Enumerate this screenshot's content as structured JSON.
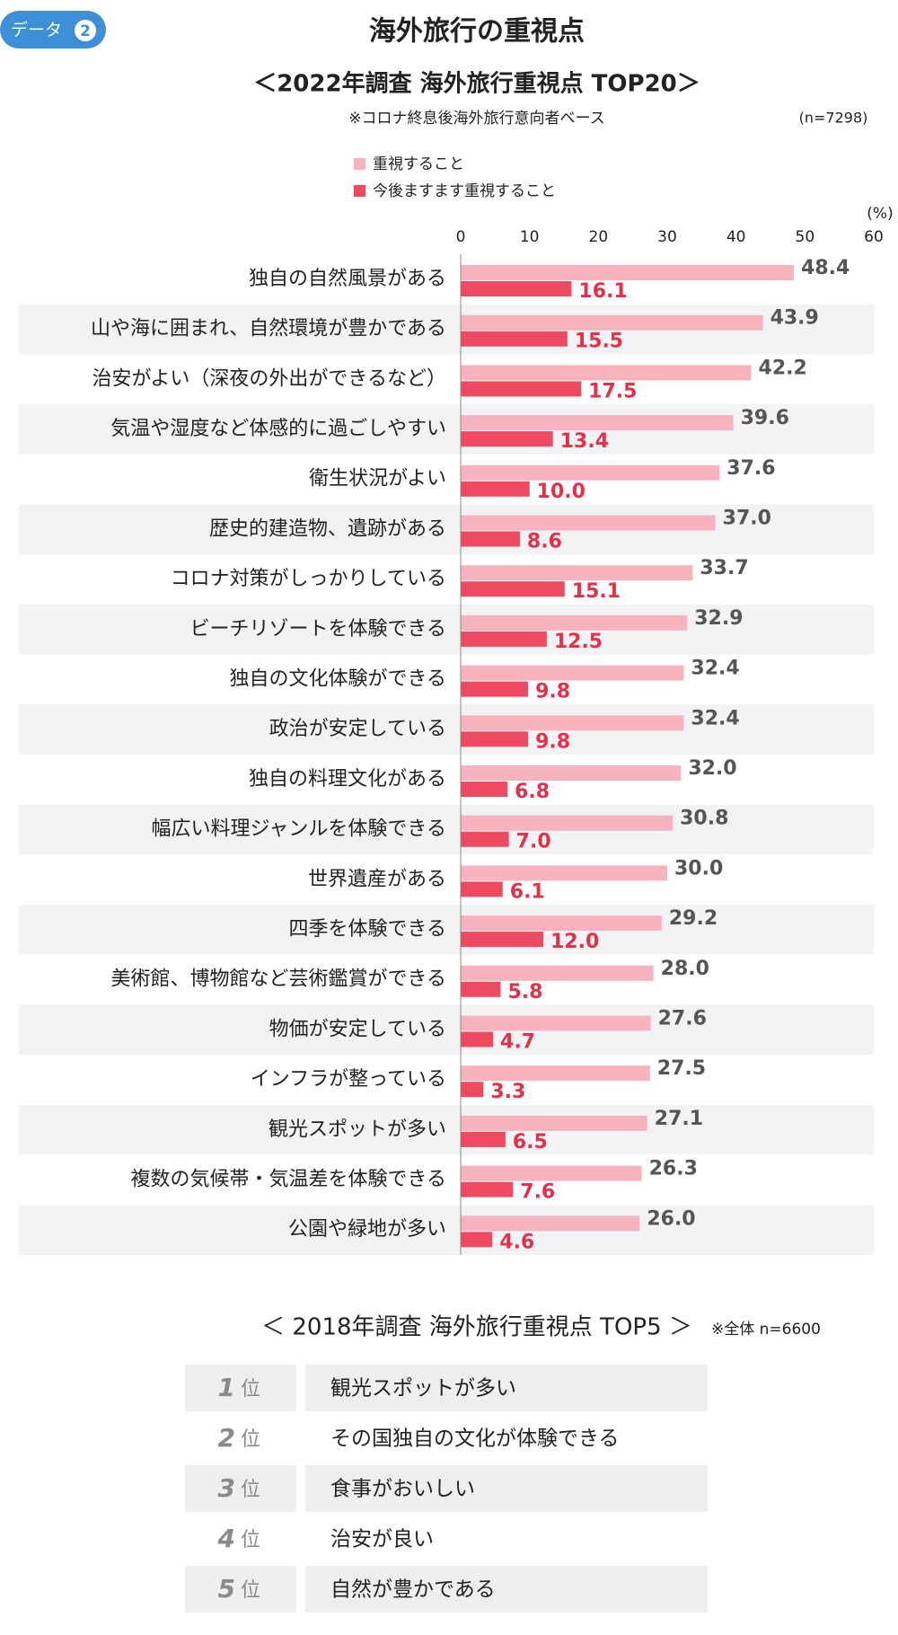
{
  "badge": {
    "label": "データ",
    "number": "2"
  },
  "title": "海外旅行の重視点",
  "chart_data": {
    "type": "bar",
    "orientation": "horizontal",
    "title": "＜2022年調査 海外旅行重視点 TOP20＞",
    "subtitle": "※コロナ終息後海外旅行意向者ベース",
    "sample_note": "(n=7298)",
    "unit_label": "(%)",
    "categories": [
      "独自の自然風景がある",
      "山や海に囲まれ、自然環境が豊かである",
      "治安がよい（深夜の外出ができるなど）",
      "気温や湿度など体感的に過ごしやすい",
      "衛生状況がよい",
      "歴史的建造物、遺跡がある",
      "コロナ対策がしっかりしている",
      "ビーチリゾートを体験できる",
      "独自の文化体験ができる",
      "政治が安定している",
      "独自の料理文化がある",
      "幅広い料理ジャンルを体験できる",
      "世界遺産がある",
      "四季を体験できる",
      "美術館、博物館など芸術鑑賞ができる",
      "物価が安定している",
      "インフラが整っている",
      "観光スポットが多い",
      "複数の気候帯・気温差を体験できる",
      "公園や緑地が多い"
    ],
    "series": [
      {
        "name": "重視すること",
        "color": "#f8b4be",
        "label_color": "#555555",
        "values": [
          48.4,
          43.9,
          42.2,
          39.6,
          37.6,
          37.0,
          33.7,
          32.9,
          32.4,
          32.4,
          32.0,
          30.8,
          30.0,
          29.2,
          28.0,
          27.6,
          27.5,
          27.1,
          26.3,
          26.0
        ],
        "value_labels": [
          "48.4",
          "43.9",
          "42.2",
          "39.6",
          "37.6",
          "37.0",
          "33.7",
          "32.9",
          "32.4",
          "32.4",
          "32.0",
          "30.8",
          "30.0",
          "29.2",
          "28.0",
          "27.6",
          "27.5",
          "27.1",
          "26.3",
          "26.0"
        ]
      },
      {
        "name": "今後ますます重視すること",
        "color": "#ee4a61",
        "label_color": "#e5304a",
        "values": [
          16.1,
          15.5,
          17.5,
          13.4,
          10.0,
          8.6,
          15.1,
          12.5,
          9.8,
          9.8,
          6.8,
          7.0,
          6.1,
          12.0,
          5.8,
          4.7,
          3.3,
          6.5,
          7.6,
          4.6
        ],
        "value_labels": [
          "16.1",
          "15.5",
          "17.5",
          "13.4",
          "10.0",
          "8.6",
          "15.1",
          "12.5",
          "9.8",
          "9.8",
          "6.8",
          "7.0",
          "6.1",
          "12.0",
          "5.8",
          "4.7",
          "3.3",
          "6.5",
          "7.6",
          "4.6"
        ]
      }
    ],
    "xlim": [
      0,
      60
    ],
    "xticks": [
      0,
      10,
      20,
      30,
      40,
      50,
      60
    ],
    "grid": false
  },
  "ranking": {
    "title": "＜ 2018年調査 海外旅行重視点 TOP5 ＞",
    "note": "※全体 n=6600",
    "rank_unit": "位",
    "rows": [
      {
        "rank": 1,
        "item": "観光スポットが多い"
      },
      {
        "rank": 2,
        "item": "その国独自の文化が体験できる"
      },
      {
        "rank": 3,
        "item": "食事がおいしい"
      },
      {
        "rank": 4,
        "item": "治安が良い"
      },
      {
        "rank": 5,
        "item": "自然が豊かである"
      }
    ]
  }
}
